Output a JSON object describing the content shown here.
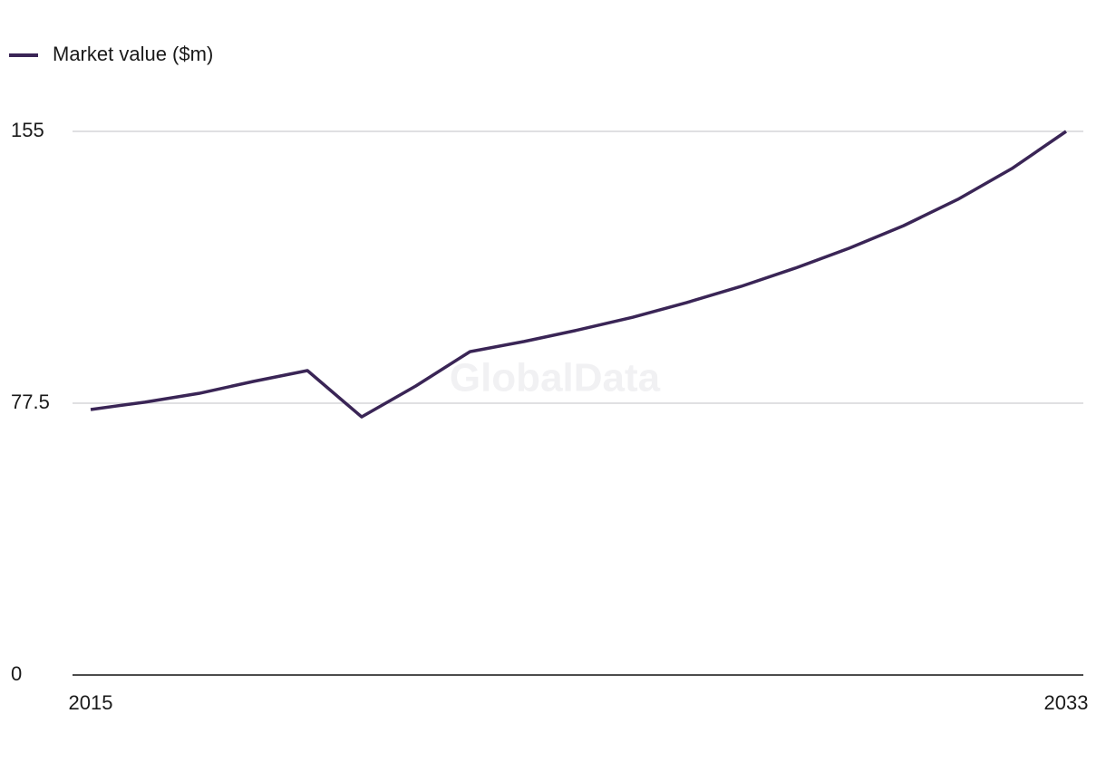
{
  "chart_data": {
    "type": "line",
    "legend": "top-left",
    "watermark": "GlobalData",
    "x": [
      2015,
      2016,
      2017,
      2018,
      2019,
      2020,
      2021,
      2022,
      2023,
      2024,
      2025,
      2026,
      2027,
      2028,
      2029,
      2030,
      2031,
      2032,
      2033
    ],
    "xlim": [
      2015,
      2033
    ],
    "xticks": [
      2015,
      2033
    ],
    "ylim": [
      0,
      155
    ],
    "yticks": [
      0,
      77.5,
      155
    ],
    "grid": true,
    "series": [
      {
        "name": "Market value ($m)",
        "color": "#3a2556",
        "values": [
          75.7,
          77.8,
          80.3,
          83.7,
          86.8,
          73.6,
          82.4,
          92.2,
          95.1,
          98.4,
          102.0,
          106.2,
          110.8,
          116.0,
          121.7,
          128.1,
          135.6,
          144.4,
          155.0
        ]
      }
    ]
  }
}
